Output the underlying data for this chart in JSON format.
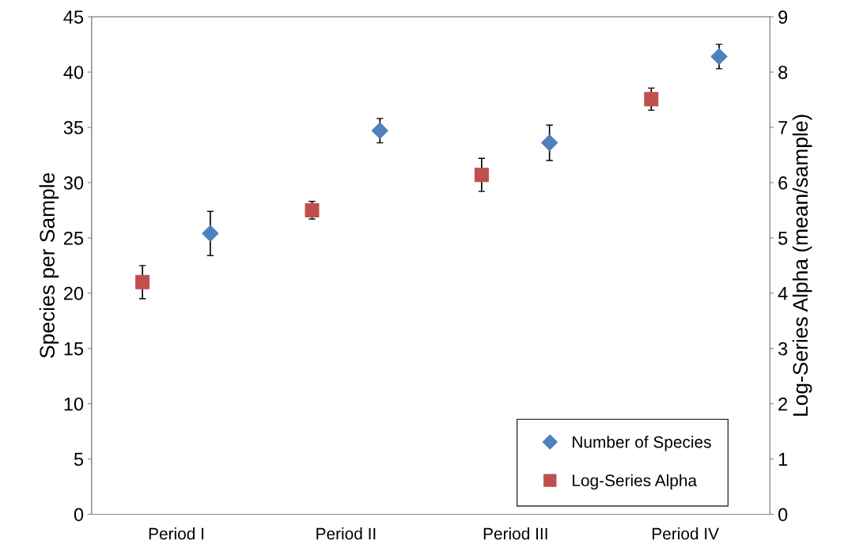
{
  "chart_data": {
    "type": "scatter",
    "ylabel": "Species per Sample",
    "y2label": "Log-Series Alpha (mean/sample)",
    "categories": [
      "Period I",
      "Period II",
      "Period III",
      "Period IV"
    ],
    "series": [
      {
        "name": "Number of Species",
        "color": "#4f81bd",
        "marker": "diamond",
        "values": [
          25.4,
          34.7,
          33.6,
          41.4
        ],
        "errors": [
          2.0,
          1.1,
          1.6,
          1.1
        ]
      },
      {
        "name": "Log-Series Alpha",
        "color": "#c0504d",
        "marker": "square",
        "axis": "y2",
        "values": [
          4.2,
          5.5,
          6.14,
          7.51
        ],
        "errors": [
          0.3,
          0.16,
          0.3,
          0.2
        ]
      }
    ],
    "ylim": [
      0,
      45
    ],
    "yticks": [
      0,
      5,
      10,
      15,
      20,
      25,
      30,
      35,
      40,
      45
    ],
    "y2lim": [
      0,
      9
    ],
    "y2ticks": [
      0,
      1,
      2,
      3,
      4,
      5,
      6,
      7,
      8,
      9
    ],
    "grid": false,
    "legend": "bottom right"
  }
}
